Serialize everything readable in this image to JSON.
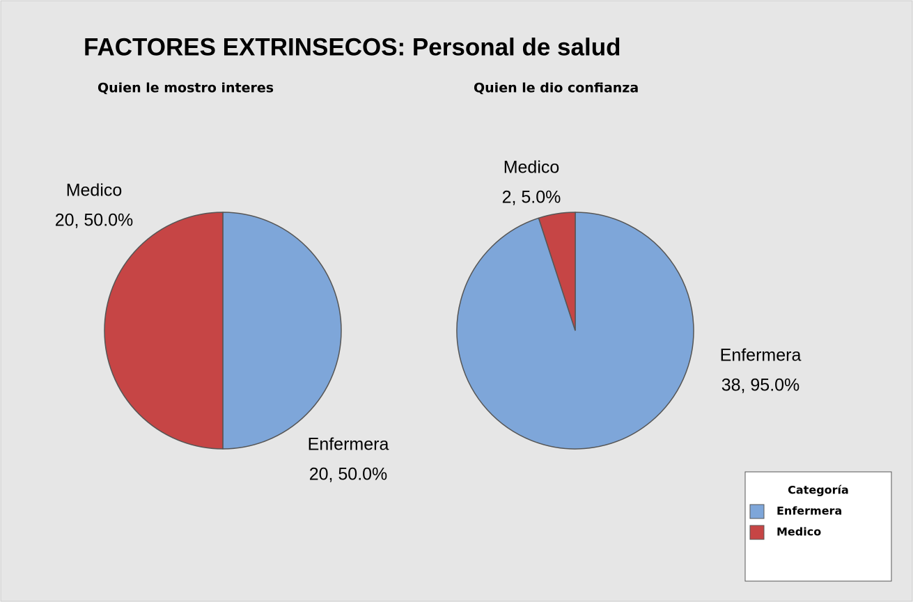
{
  "title": "FACTORES EXTRINSECOS: Personal de salud",
  "legend_title": "Categoría",
  "chart_data": [
    {
      "type": "pie",
      "title": "Quien le mostro interes",
      "categories": [
        "Enfermera",
        "Medico"
      ],
      "values": [
        20,
        20
      ],
      "value_labels": [
        "20, 50.0%",
        "20, 50.0%"
      ],
      "colors": [
        "#7ea6d9",
        "#c64545"
      ]
    },
    {
      "type": "pie",
      "title": "Quien le dio confianza",
      "categories": [
        "Enfermera",
        "Medico"
      ],
      "values": [
        38,
        2
      ],
      "value_labels": [
        "38, 95.0%",
        "2, 5.0%"
      ],
      "colors": [
        "#7ea6d9",
        "#c64545"
      ]
    }
  ]
}
